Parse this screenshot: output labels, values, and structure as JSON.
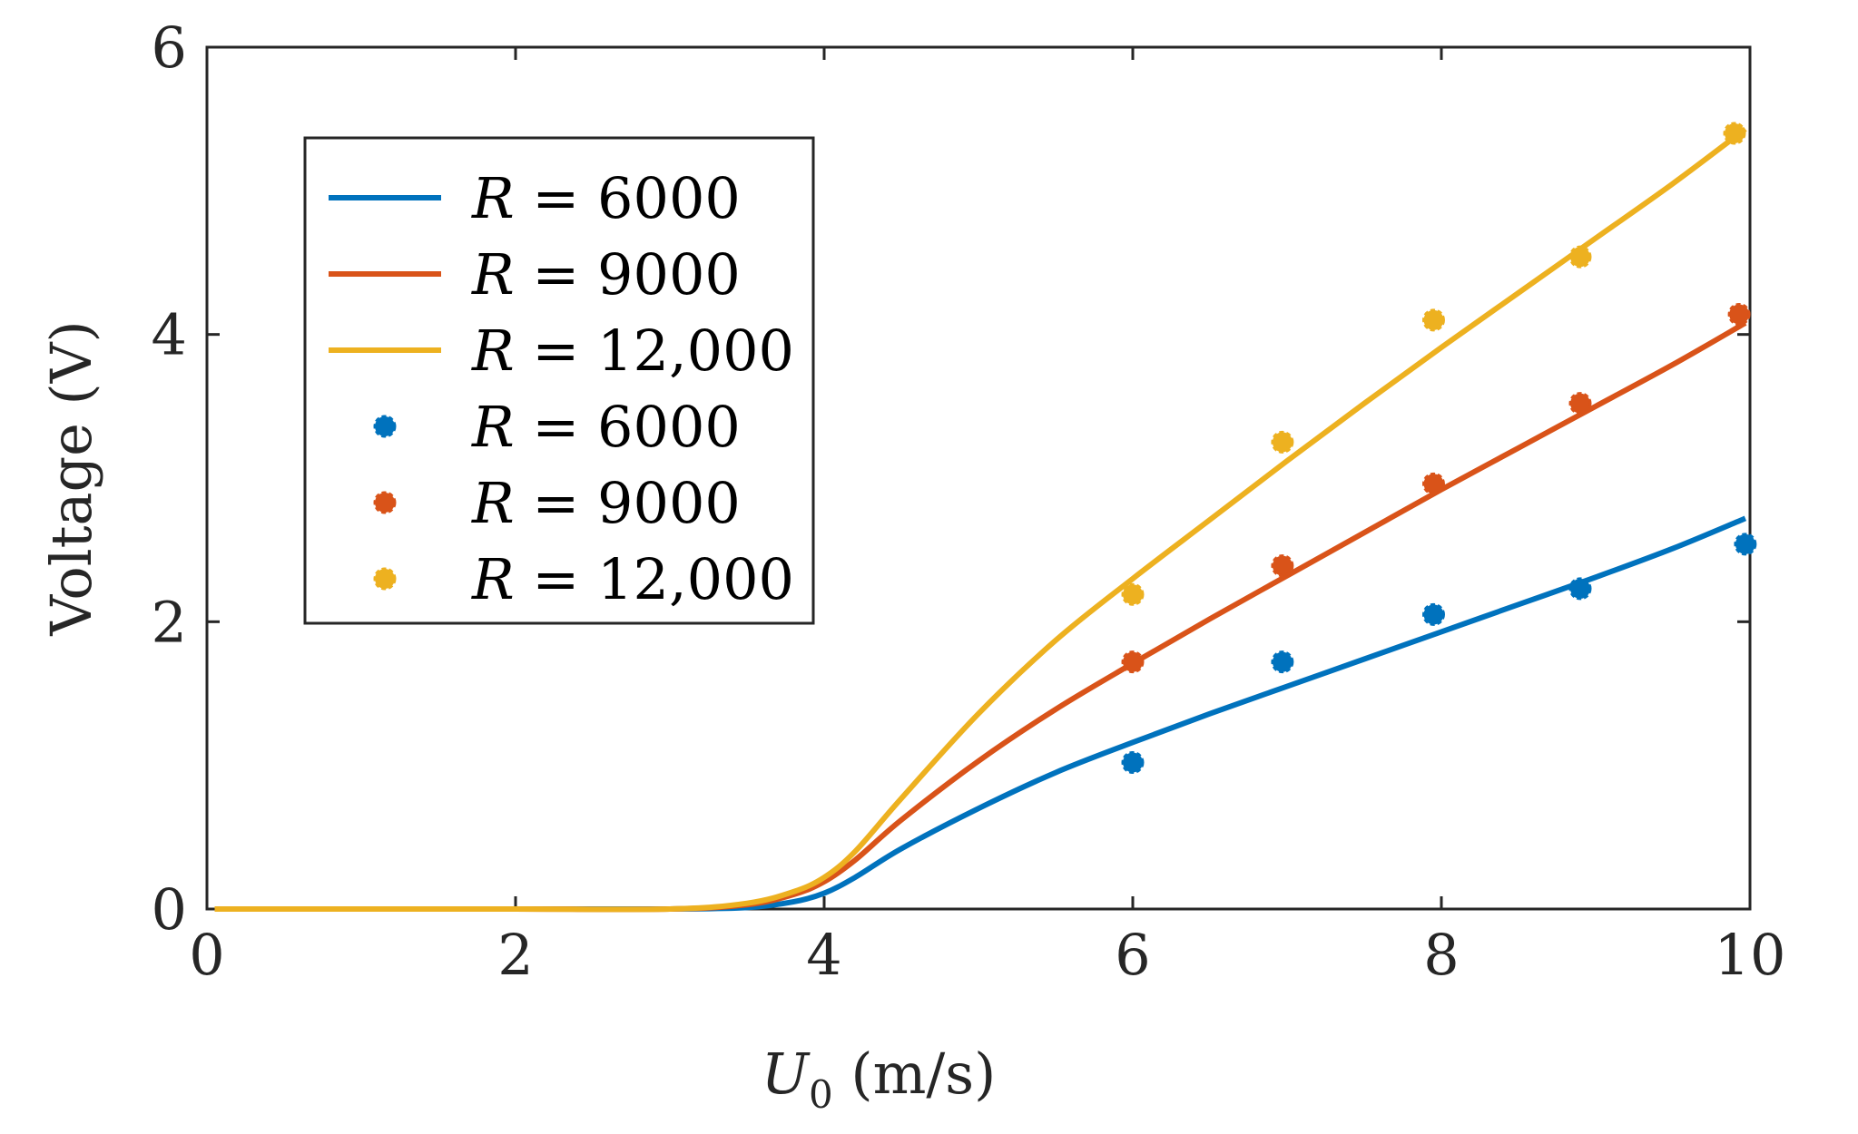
{
  "chart_data": {
    "type": "line",
    "title": "",
    "xlabel_main": "U",
    "xlabel_sub": "0",
    "xlabel_unit": " (m/s)",
    "ylabel": "Voltage (V)",
    "xlim": [
      0,
      10
    ],
    "ylim": [
      0,
      6
    ],
    "xticks": [
      0,
      2,
      4,
      6,
      8,
      10
    ],
    "yticks": [
      0,
      2,
      4,
      6
    ],
    "grid": false,
    "legend_position": "upper-left",
    "legend": [
      {
        "r_symbol": "R",
        "value": " = 6000",
        "kind": "line",
        "series": 0
      },
      {
        "r_symbol": "R",
        "value": " = 9000",
        "kind": "line",
        "series": 1
      },
      {
        "r_symbol": "R",
        "value": " = 12,000",
        "kind": "line",
        "series": 2
      },
      {
        "r_symbol": "R",
        "value": " = 6000",
        "kind": "marker",
        "series": 0
      },
      {
        "r_symbol": "R",
        "value": " = 9000",
        "kind": "marker",
        "series": 1
      },
      {
        "r_symbol": "R",
        "value": " = 12,000",
        "kind": "marker",
        "series": 2
      }
    ],
    "series": [
      {
        "name": "R = 6000 (model)",
        "color": "#0072BD",
        "x": [
          0.05,
          1,
          2,
          3,
          3.5,
          3.8,
          4.0,
          4.2,
          4.5,
          5.0,
          5.5,
          6.0,
          6.5,
          7.0,
          7.5,
          8.0,
          8.5,
          9.0,
          9.5,
          9.97
        ],
        "y": [
          0,
          0,
          0,
          0,
          0.01,
          0.05,
          0.11,
          0.22,
          0.42,
          0.7,
          0.95,
          1.16,
          1.36,
          1.55,
          1.74,
          1.93,
          2.12,
          2.31,
          2.51,
          2.72
        ]
      },
      {
        "name": "R = 9000 (model)",
        "color": "#D95319",
        "x": [
          0.05,
          1,
          2,
          3,
          3.5,
          3.8,
          4.0,
          4.2,
          4.5,
          5.0,
          5.5,
          6.0,
          6.5,
          7.0,
          7.5,
          8.0,
          8.5,
          9.0,
          9.5,
          9.97
        ],
        "y": [
          0,
          0,
          0,
          0,
          0.03,
          0.1,
          0.19,
          0.34,
          0.62,
          1.03,
          1.39,
          1.71,
          2.02,
          2.32,
          2.62,
          2.92,
          3.21,
          3.5,
          3.79,
          4.08
        ]
      },
      {
        "name": "R = 12,000 (model)",
        "color": "#EDB120",
        "x": [
          0.05,
          1,
          2,
          3,
          3.5,
          3.8,
          4.0,
          4.2,
          4.5,
          5.0,
          5.5,
          6.0,
          6.5,
          7.0,
          7.5,
          8.0,
          8.5,
          9.0,
          9.5,
          9.97
        ],
        "y": [
          0,
          0,
          0,
          0,
          0.04,
          0.12,
          0.22,
          0.4,
          0.77,
          1.36,
          1.87,
          2.3,
          2.71,
          3.12,
          3.52,
          3.91,
          4.29,
          4.67,
          5.05,
          5.43
        ]
      }
    ],
    "scatter": [
      {
        "name": "R = 6000 (experiment)",
        "color": "#0072BD",
        "x": [
          6.0,
          6.97,
          7.95,
          8.9,
          9.97
        ],
        "y": [
          1.02,
          1.72,
          2.05,
          2.23,
          2.54
        ]
      },
      {
        "name": "R = 9000 (experiment)",
        "color": "#D95319",
        "x": [
          6.0,
          6.97,
          7.95,
          8.9,
          9.93
        ],
        "y": [
          1.72,
          2.39,
          2.96,
          3.52,
          4.14
        ]
      },
      {
        "name": "R = 12,000 (experiment)",
        "color": "#EDB120",
        "x": [
          6.0,
          6.97,
          7.95,
          8.9,
          9.9
        ],
        "y": [
          2.19,
          3.25,
          4.1,
          4.54,
          5.4
        ]
      }
    ]
  }
}
